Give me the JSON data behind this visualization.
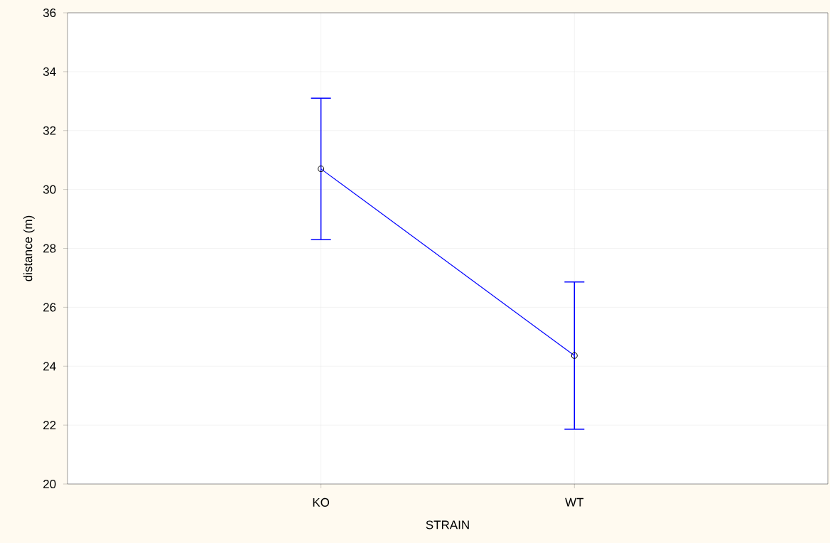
{
  "chart_data": {
    "type": "line",
    "xlabel": "STRAIN",
    "ylabel": "distance (m)",
    "categories": [
      "KO",
      "WT"
    ],
    "series": [
      {
        "color": "#0000ff",
        "values": [
          30.7,
          24.36
        ],
        "errors": [
          2.4,
          2.5
        ]
      }
    ],
    "ylim": [
      20,
      36
    ],
    "yticks": [
      20,
      22,
      24,
      26,
      28,
      30,
      32,
      34,
      36
    ],
    "grid": true,
    "marker": "circle",
    "line_style": "solid"
  }
}
